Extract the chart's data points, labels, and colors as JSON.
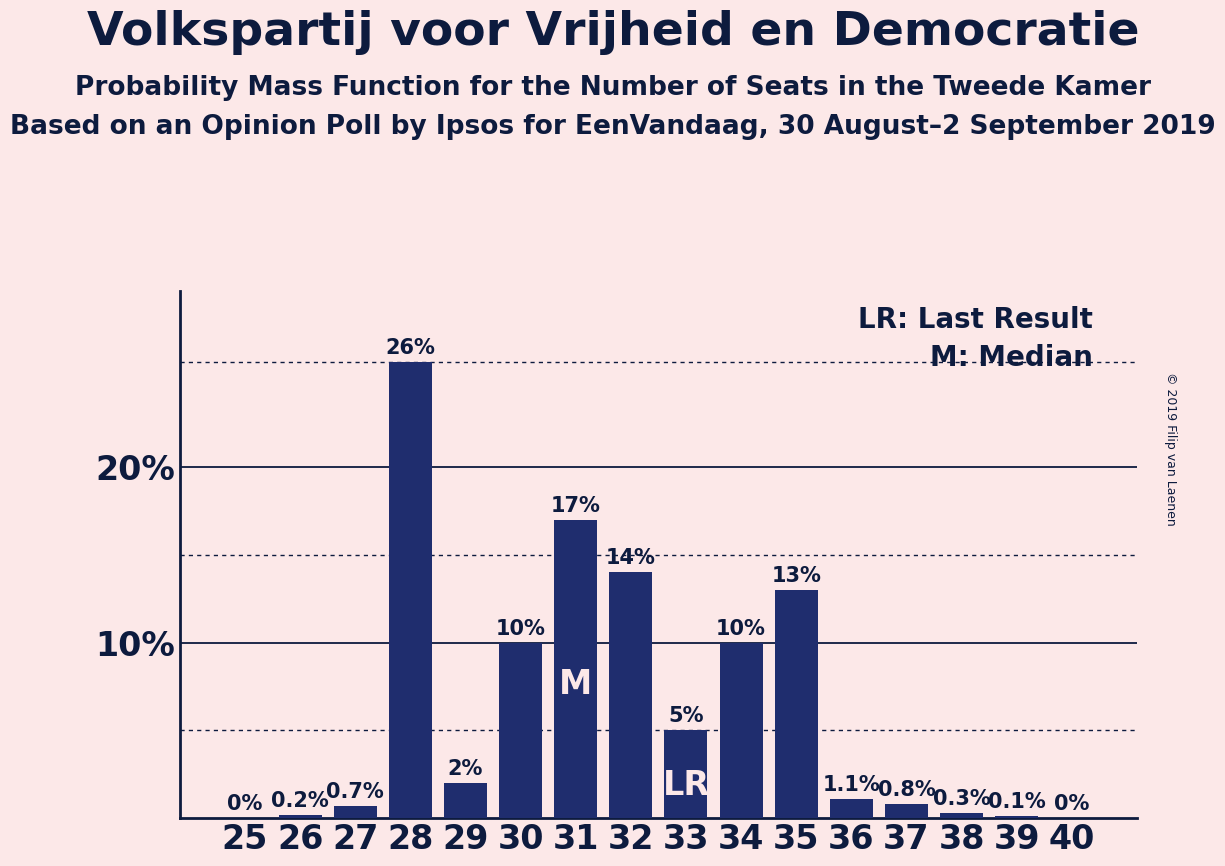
{
  "title": "Volkspartij voor Vrijheid en Democratie",
  "subtitle1": "Probability Mass Function for the Number of Seats in the Tweede Kamer",
  "subtitle2": "Based on an Opinion Poll by Ipsos for EenVandaag, 30 August–2 September 2019",
  "copyright": "© 2019 Filip van Laenen",
  "background_color": "#fce8e8",
  "bar_color": "#1f2d6e",
  "categories": [
    25,
    26,
    27,
    28,
    29,
    30,
    31,
    32,
    33,
    34,
    35,
    36,
    37,
    38,
    39,
    40
  ],
  "values": [
    0.0,
    0.2,
    0.7,
    26.0,
    2.0,
    10.0,
    17.0,
    14.0,
    5.0,
    10.0,
    13.0,
    1.1,
    0.8,
    0.3,
    0.1,
    0.0
  ],
  "labels": [
    "0%",
    "0.2%",
    "0.7%",
    "26%",
    "2%",
    "10%",
    "17%",
    "14%",
    "5%",
    "10%",
    "13%",
    "1.1%",
    "0.8%",
    "0.3%",
    "0.1%",
    "0%"
  ],
  "yticks": [
    10,
    20
  ],
  "ylim": [
    0,
    30
  ],
  "median_seat": 31,
  "last_result_seat": 33,
  "lr_label": "LR",
  "m_label": "M",
  "legend_lr": "LR: Last Result",
  "legend_m": "M: Median",
  "dotted_lines": [
    5.0,
    15.0,
    26.0
  ],
  "solid_lines": [
    10.0,
    20.0
  ],
  "title_fontsize": 34,
  "subtitle_fontsize": 19,
  "axis_label_fontsize": 24,
  "bar_label_fontsize": 15,
  "legend_fontsize": 20,
  "inbar_label_fontsize": 24,
  "title_color": "#0d1b3e",
  "text_color": "#0d1b3e"
}
